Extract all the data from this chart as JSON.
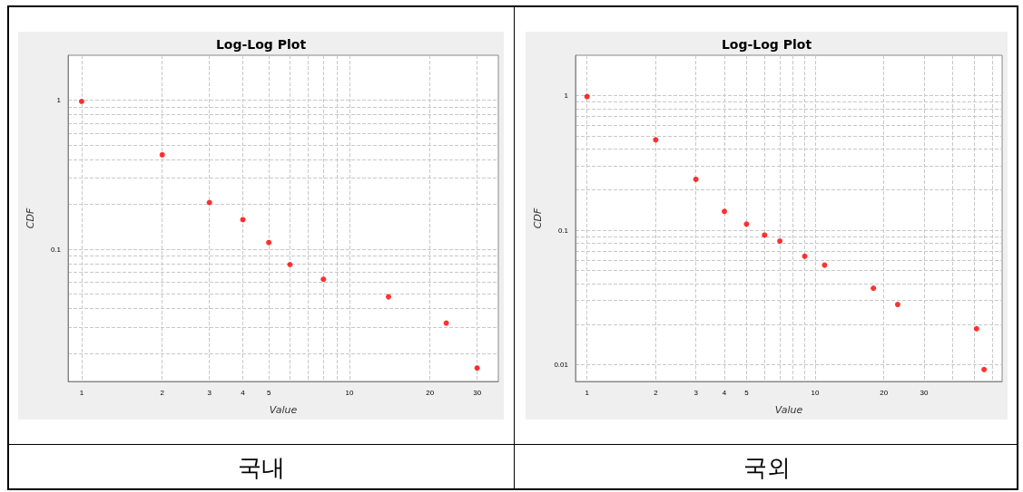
{
  "chart_data": [
    {
      "type": "scatter",
      "title": "Log-Log Plot",
      "xlabel": "Value",
      "ylabel": "CDF",
      "annotations": [
        "국내"
      ],
      "log": "xy",
      "grid": true,
      "marker": "circle",
      "xlim": [
        0.89,
        36
      ],
      "ylim": [
        0.013,
        2
      ],
      "xticks": [
        1,
        2,
        3,
        4,
        5,
        {
          "value": 6,
          "label": null
        },
        {
          "value": 7,
          "label": null
        },
        {
          "value": 8,
          "label": null
        },
        {
          "value": 9,
          "label": null
        },
        10,
        20,
        30
      ],
      "yticks": [
        {
          "value": 0.02,
          "label": null
        },
        {
          "value": 0.03,
          "label": null
        },
        {
          "value": 0.04,
          "label": null
        },
        {
          "value": 0.05,
          "label": null
        },
        {
          "value": 0.06,
          "label": null
        },
        {
          "value": 0.07,
          "label": null
        },
        {
          "value": 0.08,
          "label": null
        },
        {
          "value": 0.09,
          "label": null
        },
        0.1,
        {
          "value": 0.2,
          "label": null
        },
        {
          "value": 0.3,
          "label": null
        },
        {
          "value": 0.4,
          "label": null
        },
        {
          "value": 0.5,
          "label": null
        },
        {
          "value": 0.6,
          "label": null
        },
        {
          "value": 0.7,
          "label": null
        },
        {
          "value": 0.8,
          "label": null
        },
        {
          "value": 0.9,
          "label": null
        },
        1
      ],
      "series": [
        {
          "color": "#ff0000",
          "x": [
            1,
            2,
            3,
            4,
            5,
            6,
            8,
            14,
            23,
            30
          ],
          "values": [
            0.98,
            0.43,
            0.206,
            0.158,
            0.111,
            0.079,
            0.063,
            0.048,
            0.032,
            0.016
          ]
        }
      ]
    },
    {
      "type": "scatter",
      "title": "Log-Log Plot",
      "xlabel": "Value",
      "ylabel": "CDF",
      "annotations": [
        "국외"
      ],
      "log": "xy",
      "grid": true,
      "marker": "circle",
      "xlim": [
        0.89,
        66
      ],
      "ylim": [
        0.0075,
        2
      ],
      "xticks": [
        1,
        2,
        3,
        4,
        5,
        {
          "value": 6,
          "label": null
        },
        {
          "value": 7,
          "label": null
        },
        {
          "value": 8,
          "label": null
        },
        {
          "value": 9,
          "label": null
        },
        10,
        20,
        30,
        {
          "value": 40,
          "label": null
        },
        {
          "value": 50,
          "label": null
        },
        {
          "value": 60,
          "label": null
        }
      ],
      "yticks": [
        0.01,
        {
          "value": 0.02,
          "label": null
        },
        {
          "value": 0.03,
          "label": null
        },
        {
          "value": 0.04,
          "label": null
        },
        {
          "value": 0.05,
          "label": null
        },
        {
          "value": 0.06,
          "label": null
        },
        {
          "value": 0.07,
          "label": null
        },
        {
          "value": 0.08,
          "label": null
        },
        {
          "value": 0.09,
          "label": null
        },
        0.1,
        {
          "value": 0.2,
          "label": null
        },
        {
          "value": 0.3,
          "label": null
        },
        {
          "value": 0.4,
          "label": null
        },
        {
          "value": 0.5,
          "label": null
        },
        {
          "value": 0.6,
          "label": null
        },
        {
          "value": 0.7,
          "label": null
        },
        {
          "value": 0.8,
          "label": null
        },
        {
          "value": 0.9,
          "label": null
        },
        1
      ],
      "series": [
        {
          "color": "#ff0000",
          "x": [
            1,
            2,
            3,
            4,
            5,
            6,
            7,
            9,
            11,
            18,
            23,
            51,
            55
          ],
          "values": [
            0.985,
            0.47,
            0.239,
            0.138,
            0.111,
            0.092,
            0.083,
            0.064,
            0.055,
            0.037,
            0.028,
            0.0185,
            0.0092
          ]
        }
      ]
    }
  ]
}
